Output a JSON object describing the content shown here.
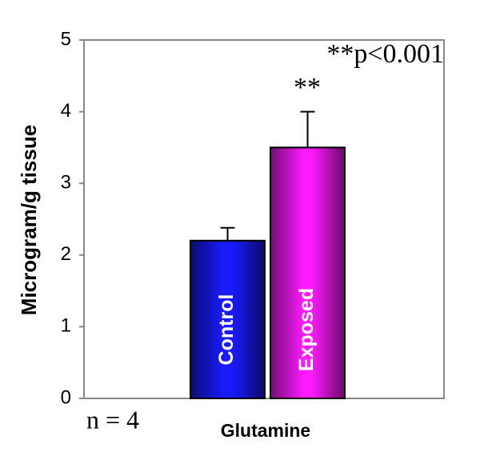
{
  "chart_data": {
    "type": "bar",
    "y_label": "Microgram/g tissue",
    "x_label": "Glutamine",
    "categories": [
      "Control",
      "Exposed"
    ],
    "values": [
      2.2,
      3.5
    ],
    "errors": [
      0.18,
      0.5
    ],
    "colors": [
      "#1a1aff",
      "#ff1aff"
    ],
    "ylim": [
      0,
      5
    ],
    "yticks": [
      0,
      1,
      2,
      3,
      4,
      5
    ],
    "grid": false,
    "annotations": [
      "**p<0.001",
      "**",
      "n = 4"
    ]
  }
}
